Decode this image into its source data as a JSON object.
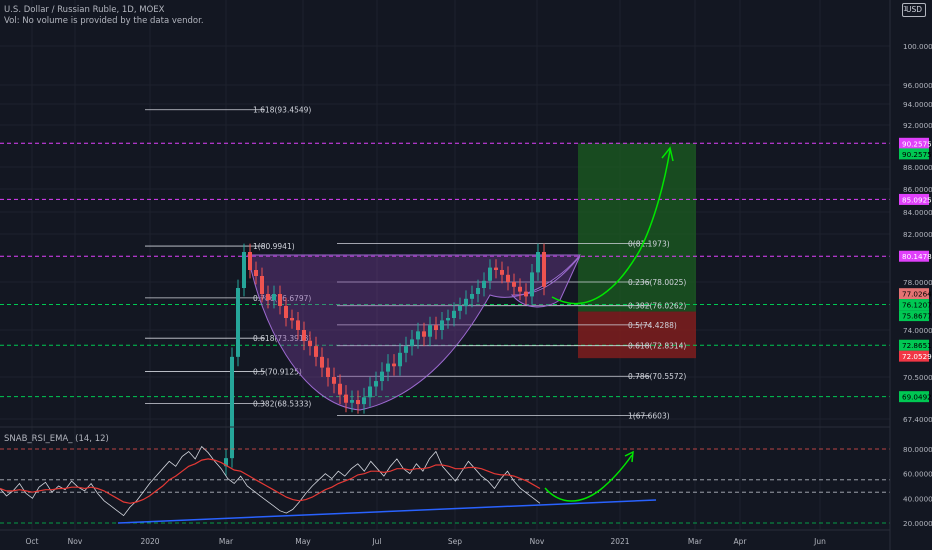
{
  "header": {
    "title": "U.S. Dollar / Russian Ruble, 1D, MOEX",
    "subtitle": "Vol: No volume is provided by the data vendor.",
    "currency": "USD"
  },
  "price_axis": {
    "ticks": [
      "1",
      "100.0000",
      "96.0000",
      "94.0000",
      "92.0000",
      "88.0000",
      "86.0000",
      "84.0000",
      "82.0000",
      "78.0000",
      "74.0000",
      "70.5000",
      "67.4000"
    ]
  },
  "price_badges": [
    {
      "label": "90.2575",
      "value": 90.2575,
      "bg": "#e040fb",
      "fg": "#ffffff"
    },
    {
      "label": "90.2575",
      "value": 89.25,
      "bg": "#00c853",
      "fg": "#000000"
    },
    {
      "label": "85.0925",
      "value": 85.0925,
      "bg": "#e040fb",
      "fg": "#ffffff"
    },
    {
      "label": "80.1478",
      "value": 80.1478,
      "bg": "#e040fb",
      "fg": "#ffffff"
    },
    {
      "label": "77.0264",
      "value": 77.0264,
      "bg": "#e57373",
      "fg": "#000000"
    },
    {
      "label": "76.1207",
      "value": 76.1207,
      "bg": "#00c853",
      "fg": "#000000"
    },
    {
      "label": "75.8677",
      "value": 75.2,
      "bg": "#00c853",
      "fg": "#000000"
    },
    {
      "label": "72.8651",
      "value": 72.8651,
      "bg": "#00c853",
      "fg": "#000000"
    },
    {
      "label": "72.0529",
      "value": 72.0529,
      "bg": "#f23645",
      "fg": "#ffffff"
    },
    {
      "label": "69.0492",
      "value": 69.0492,
      "bg": "#00c853",
      "fg": "#000000"
    }
  ],
  "fib_left": [
    {
      "label": "1.618(93.4549)",
      "value": 93.4549
    },
    {
      "label": "1(80.9941)",
      "value": 80.9941
    },
    {
      "label": "0.786(76.6797)",
      "value": 76.6797
    },
    {
      "label": "0.618(73.3918)",
      "value": 73.3918
    },
    {
      "label": "0.5(70.9125)",
      "value": 70.9125
    },
    {
      "label": "0.382(68.5333)",
      "value": 68.5333
    }
  ],
  "fib_right": [
    {
      "label": "0(81.1973)",
      "value": 81.1973
    },
    {
      "label": "0.236(78.0025)",
      "value": 78.0025
    },
    {
      "label": "0.382(76.0262)",
      "value": 76.0262
    },
    {
      "label": "0.5(74.4288)",
      "value": 74.4288
    },
    {
      "label": "0.618(72.8314)",
      "value": 72.8314
    },
    {
      "label": "0.786(70.5572)",
      "value": 70.5572
    },
    {
      "label": "1(67.6603)",
      "value": 67.6603
    }
  ],
  "horizontal_levels": [
    {
      "value": 90.2575,
      "color": "#e040fb",
      "style": "dashed"
    },
    {
      "value": 85.0925,
      "color": "#e040fb",
      "style": "dashed"
    },
    {
      "value": 80.1478,
      "color": "#e040fb",
      "style": "dashed"
    },
    {
      "value": 76.1207,
      "color": "#00c853",
      "style": "dashed"
    },
    {
      "value": 72.8651,
      "color": "#00c853",
      "style": "dashed"
    },
    {
      "value": 69.0492,
      "color": "#00c853",
      "style": "dashed"
    }
  ],
  "position": {
    "entry": 76.1207,
    "target": 90.2575,
    "stop": 72.0529
  },
  "indicator": {
    "name": "SNAB_RSI_EMA_ (14, 12)",
    "ticks": [
      "80.0000",
      "60.0000",
      "40.0000",
      "20.0000"
    ],
    "levels": [
      {
        "value": 80,
        "color": "#ef5350"
      },
      {
        "value": 55,
        "color": "#b2b5be"
      },
      {
        "value": 45,
        "color": "#b2b5be"
      },
      {
        "value": 20,
        "color": "#00c853"
      }
    ]
  },
  "time_axis": {
    "labels": [
      "Oct",
      "Nov",
      "2020",
      "Mar",
      "May",
      "Jul",
      "Sep",
      "Nov",
      "2021",
      "Mar",
      "Apr",
      "Jun"
    ]
  },
  "colors": {
    "up": "#26a69a",
    "down": "#ef5350",
    "cup": "#7b3fa0",
    "arrow": "#00e600",
    "trend": "#2962ff"
  }
}
